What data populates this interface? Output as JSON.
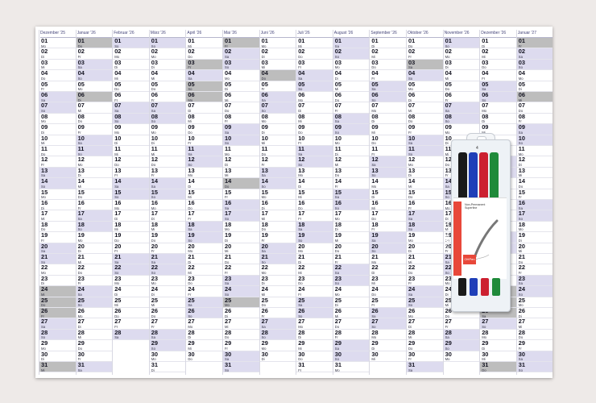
{
  "months": [
    {
      "label": "Dezember '25",
      "first_weekday": 0,
      "days": 31
    },
    {
      "label": "Januar '26",
      "first_weekday": 3,
      "days": 31
    },
    {
      "label": "Februar '26",
      "first_weekday": 6,
      "days": 28
    },
    {
      "label": "März '26",
      "first_weekday": 6,
      "days": 31
    },
    {
      "label": "April '26",
      "first_weekday": 2,
      "days": 30
    },
    {
      "label": "Mai '26",
      "first_weekday": 4,
      "days": 31
    },
    {
      "label": "Juni '26",
      "first_weekday": 0,
      "days": 30
    },
    {
      "label": "Juli '26",
      "first_weekday": 2,
      "days": 31
    },
    {
      "label": "August '26",
      "first_weekday": 5,
      "days": 31
    },
    {
      "label": "September '26",
      "first_weekday": 1,
      "days": 30
    },
    {
      "label": "Oktober '26",
      "first_weekday": 3,
      "days": 31
    },
    {
      "label": "November '26",
      "first_weekday": 6,
      "days": 30
    },
    {
      "label": "Dezember '26",
      "first_weekday": 1,
      "days": 31
    },
    {
      "label": "Januar '27",
      "first_weekday": 4,
      "days": 31
    }
  ],
  "weekday_abbr": [
    "Mo",
    "Di",
    "Mi",
    "Do",
    "Fr",
    "Sa",
    "So"
  ],
  "holidays": {
    "0": [
      24,
      25,
      26,
      31
    ],
    "1": [
      1,
      6
    ],
    "4": [
      3,
      5,
      6
    ],
    "5": [
      1,
      14,
      25
    ],
    "6": [
      4
    ],
    "9": [],
    "10": [
      3
    ],
    "12": [
      24,
      25,
      26,
      31
    ],
    "13": [
      1,
      6
    ]
  },
  "package": {
    "brand": "STABILO",
    "count": "4",
    "product": "OHPen",
    "line1": "Non-Permanent",
    "line2": "Superfine"
  }
}
